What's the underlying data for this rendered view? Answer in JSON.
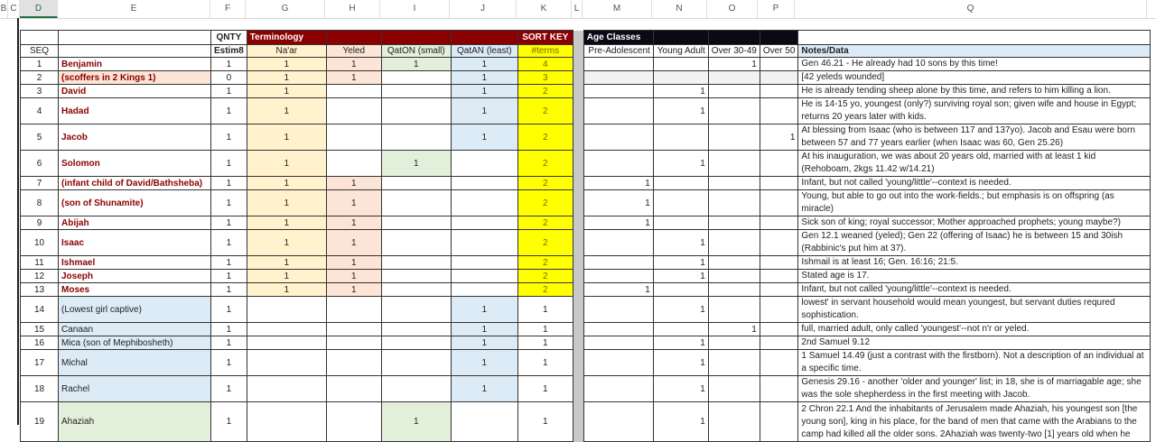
{
  "column_headers": [
    "B",
    "C",
    "D",
    "E",
    "F",
    "G",
    "H",
    "I",
    "J",
    "K",
    "L",
    "M",
    "N",
    "O",
    "P",
    "Q"
  ],
  "selected_column": "D",
  "header1": {
    "qnty": "QNTY",
    "terminology": "Terminology",
    "sort_key": "SORT KEY",
    "age_classes": "Age Classes"
  },
  "header2": {
    "seq": "SEQ",
    "estim8": "Estim8",
    "naar": "Na'ar",
    "yeled": "Yeled",
    "qaton": "QatON (small)",
    "qatan": "QatAN (least)",
    "terms": "#terms",
    "pre": "Pre-Adolescent",
    "young": "Young Adult",
    "over30": "Over 30-49",
    "over50": "Over 50",
    "notes": "Notes/Data"
  },
  "colors": {
    "terminology_header": "#8b0000",
    "age_header": "#0a0a14",
    "naar": "#fff2cc",
    "yeled": "#fce4d6",
    "qaton": "#e2efda",
    "qatan": "#ddebf7",
    "sort_key": "#ffff00",
    "name_text": "#8b0000"
  },
  "rows": [
    {
      "seq": "1",
      "name": "Benjamin",
      "bold": true,
      "q": "1",
      "g": "1",
      "h": "1",
      "i": "1",
      "j": "1",
      "k": "4",
      "m": "",
      "n": "",
      "o": "1",
      "p": "",
      "notes": "Gen 46.21 - He already had 10 sons by this time!"
    },
    {
      "seq": "2",
      "name": "(scoffers in 2 Kings 1)",
      "bold": true,
      "efill": "pink",
      "q": "0",
      "g": "1",
      "h": "1",
      "i": "",
      "j": "1",
      "k": "3",
      "m": "",
      "n": "",
      "o": "",
      "p": "",
      "notes": "[42 yeleds wounded]",
      "agegray": true
    },
    {
      "seq": "3",
      "name": "David",
      "bold": true,
      "q": "1",
      "g": "1",
      "h": "",
      "i": "",
      "j": "1",
      "k": "2",
      "m": "",
      "n": "1",
      "o": "",
      "p": "",
      "notes": "He is already tending sheep alone by this time, and refers to him killing a lion."
    },
    {
      "seq": "4",
      "name": "Hadad",
      "bold": true,
      "tall": 2,
      "q": "1",
      "g": "1",
      "h": "",
      "i": "",
      "j": "1",
      "k": "2",
      "m": "",
      "n": "1",
      "o": "",
      "p": "",
      "notes": "He is 14-15 yo, youngest (only?) surviving royal son; given wife and house in Egypt; returns 20 years later with kids."
    },
    {
      "seq": "5",
      "name": "Jacob",
      "bold": true,
      "tall": 2,
      "q": "1",
      "g": "1",
      "h": "",
      "i": "",
      "j": "1",
      "k": "2",
      "m": "",
      "n": "",
      "o": "",
      "p": "1",
      "notes": "At blessing from Isaac (who is between 117 and 137yo). Jacob and Esau were born between 57 and 77 years earlier (when Isaac was 60, Gen 25.26)"
    },
    {
      "seq": "6",
      "name": "Solomon",
      "bold": true,
      "tall": 2,
      "q": "1",
      "g": "1",
      "h": "",
      "i": "1",
      "j": "",
      "k": "2",
      "m": "",
      "n": "1",
      "o": "",
      "p": "",
      "notes": "At his inauguration, we was about 20 years old, married with at least 1 kid (Rehoboam, 2kgs 11.42 w/14.21)"
    },
    {
      "seq": "7",
      "name": "(infant child of David/Bathsheba)",
      "bold": true,
      "q": "1",
      "g": "1",
      "h": "1",
      "i": "",
      "j": "",
      "k": "2",
      "m": "1",
      "n": "",
      "o": "",
      "p": "",
      "notes": "Infant, but not called 'young/little'--context is needed."
    },
    {
      "seq": "8",
      "name": "(son of Shunamite)",
      "bold": true,
      "tall": 2,
      "q": "1",
      "g": "1",
      "h": "1",
      "i": "",
      "j": "",
      "k": "2",
      "m": "1",
      "n": "",
      "o": "",
      "p": "",
      "notes": "Young, but able to go out into the work-fields.; but emphasis is on offspring (as miracle)"
    },
    {
      "seq": "9",
      "name": "Abijah",
      "bold": true,
      "q": "1",
      "g": "1",
      "h": "1",
      "i": "",
      "j": "",
      "k": "2",
      "m": "1",
      "n": "",
      "o": "",
      "p": "",
      "notes": "Sick son of king; royal successor; Mother approached prophets; young maybe?)"
    },
    {
      "seq": "10",
      "name": "Isaac",
      "bold": true,
      "tall": 2,
      "q": "1",
      "g": "1",
      "h": "1",
      "i": "",
      "j": "",
      "k": "2",
      "m": "",
      "n": "1",
      "o": "",
      "p": "",
      "notes": "Gen 12.1 weaned (yeled); Gen 22 (offering of Isaac) he is between 15 and 30ish (Rabbinic's put him at 37)."
    },
    {
      "seq": "11",
      "name": "Ishmael",
      "bold": true,
      "q": "1",
      "g": "1",
      "h": "1",
      "i": "",
      "j": "",
      "k": "2",
      "m": "",
      "n": "1",
      "o": "",
      "p": "",
      "notes": "Ishmail is at least 16; Gen. 16:16; 21:5."
    },
    {
      "seq": "12",
      "name": "Joseph",
      "bold": true,
      "q": "1",
      "g": "1",
      "h": "1",
      "i": "",
      "j": "",
      "k": "2",
      "m": "",
      "n": "1",
      "o": "",
      "p": "",
      "notes": "Stated age is 17."
    },
    {
      "seq": "13",
      "name": "Moses",
      "bold": true,
      "q": "1",
      "g": "1",
      "h": "1",
      "i": "",
      "j": "",
      "k": "2",
      "m": "1",
      "n": "",
      "o": "",
      "p": "",
      "notes": "Infant, but not called 'young/little'--context is needed."
    },
    {
      "seq": "14",
      "name": "(Lowest girl captive)",
      "efill": "blue",
      "tall": 2,
      "q": "1",
      "g": "",
      "h": "",
      "i": "",
      "j": "1",
      "k": "1",
      "m": "",
      "n": "1",
      "o": "",
      "p": "",
      "notes": "lowest' in servant household would mean youngest, but servant duties requred sophistication."
    },
    {
      "seq": "15",
      "name": "Canaan",
      "efill": "blue",
      "q": "1",
      "g": "",
      "h": "",
      "i": "",
      "j": "1",
      "k": "1",
      "m": "",
      "n": "",
      "o": "1",
      "p": "",
      "notes": "full, married adult, only called 'youngest'--not n'r or yeled."
    },
    {
      "seq": "16",
      "name": "Mica (son of Mephibosheth)",
      "efill": "blue",
      "q": "1",
      "g": "",
      "h": "",
      "i": "",
      "j": "1",
      "k": "1",
      "m": "",
      "n": "1",
      "o": "",
      "p": "",
      "notes": "2nd Samuel 9.12"
    },
    {
      "seq": "17",
      "name": "Michal",
      "efill": "blue",
      "tall": 2,
      "q": "1",
      "g": "",
      "h": "",
      "i": "",
      "j": "1",
      "k": "1",
      "m": "",
      "n": "1",
      "o": "",
      "p": "",
      "notes": "1 Samuel 14.49 (just a contrast with the firstborn). Not a description of an individual at a specific time."
    },
    {
      "seq": "18",
      "name": "Rachel",
      "efill": "blue",
      "tall": 2,
      "q": "1",
      "g": "",
      "h": "",
      "i": "",
      "j": "1",
      "k": "1",
      "m": "",
      "n": "1",
      "o": "",
      "p": "",
      "notes": "Genesis 29.16 - another 'older and younger' list; in 18, she is of marriagable age; she was the sole shepherdess in the first meeting with Jacob."
    },
    {
      "seq": "19",
      "name": "Ahaziah",
      "efill": "green",
      "tall": 4,
      "bottom": true,
      "q": "1",
      "g": "",
      "h": "",
      "i": "1",
      "j": "",
      "k": "1",
      "m": "",
      "n": "1",
      "o": "",
      "p": "",
      "notes": "2 Chron 22.1 And the inhabitants of Jerusalem made Ahaziah, his youngest son [the young son], king in his place, for the band of men that came with the Arabians to the camp had killed all the older sons. 2Ahaziah was twenty-two [1] years old when he"
    }
  ]
}
